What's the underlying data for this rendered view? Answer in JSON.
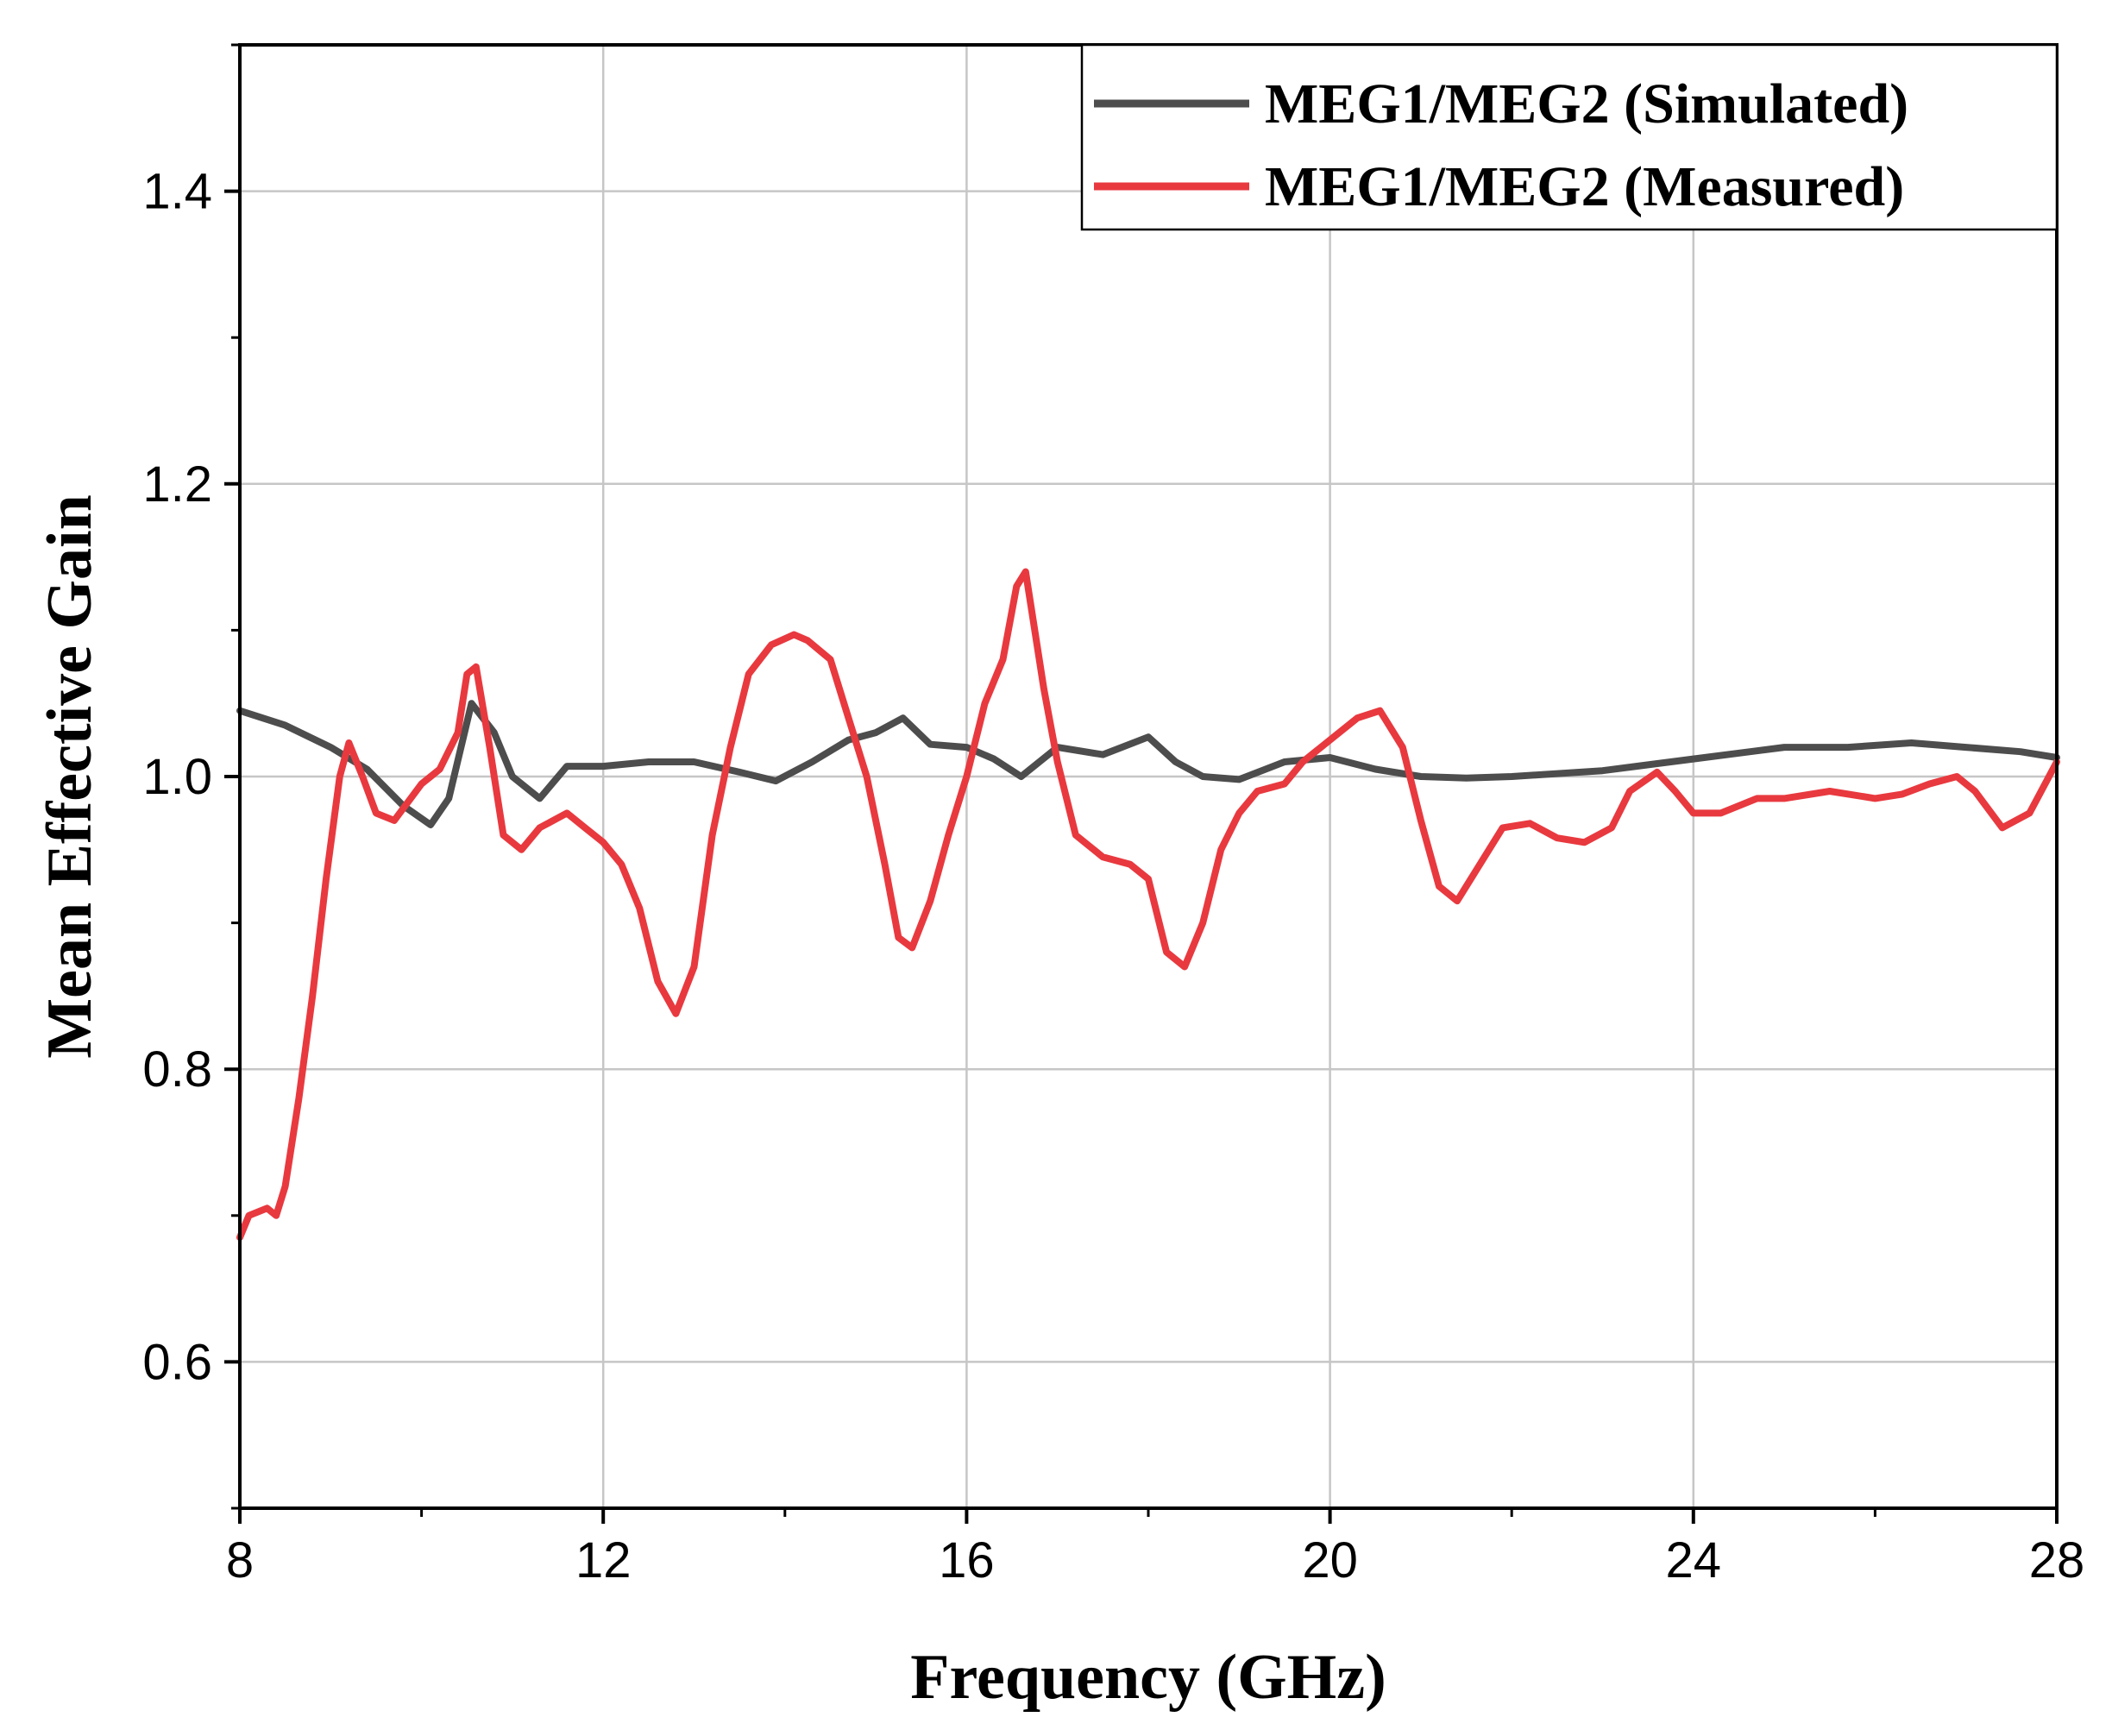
{
  "chart_data": {
    "type": "line",
    "title": "",
    "xlabel": "Frequency (GHz)",
    "ylabel": "Mean Effective Gain",
    "xlim": [
      8,
      28
    ],
    "ylim": [
      0.5,
      1.5
    ],
    "xticks": [
      8,
      12,
      16,
      20,
      24,
      28
    ],
    "yticks": [
      0.6,
      0.8,
      1.0,
      1.2,
      1.4
    ],
    "xtick_labels": [
      "8",
      "12",
      "16",
      "20",
      "24",
      "28"
    ],
    "ytick_labels": [
      "0.6",
      "0.8",
      "1.0",
      "1.2",
      "1.4"
    ],
    "grid": true,
    "legend_position": "top-right",
    "series": [
      {
        "name": "MEG1/MEG2 (Simulated)",
        "color": "#4d4d4d",
        "x": [
          8.0,
          8.5,
          9.0,
          9.4,
          9.8,
          10.1,
          10.3,
          10.55,
          10.8,
          11.0,
          11.3,
          11.6,
          12.0,
          12.5,
          13.0,
          13.5,
          13.9,
          14.3,
          14.7,
          15.0,
          15.3,
          15.6,
          16.0,
          16.3,
          16.6,
          17.0,
          17.5,
          18.0,
          18.3,
          18.6,
          19.0,
          19.5,
          20.0,
          20.5,
          21.0,
          21.5,
          22.0,
          23.0,
          24.0,
          25.0,
          25.7,
          26.4,
          27.0,
          27.6,
          28.0
        ],
        "values": [
          1.045,
          1.035,
          1.02,
          1.005,
          0.98,
          0.967,
          0.985,
          1.05,
          1.03,
          1.0,
          0.985,
          1.007,
          1.007,
          1.01,
          1.01,
          1.003,
          0.997,
          1.01,
          1.025,
          1.03,
          1.04,
          1.022,
          1.02,
          1.012,
          1.0,
          1.02,
          1.015,
          1.027,
          1.01,
          1.0,
          0.998,
          1.01,
          1.013,
          1.005,
          1.0,
          0.999,
          1.0,
          1.004,
          1.012,
          1.02,
          1.02,
          1.023,
          1.02,
          1.017,
          1.013
        ]
      },
      {
        "name": "MEG1/MEG2 (Measured)",
        "color": "#e8393f",
        "x": [
          8.0,
          8.1,
          8.3,
          8.4,
          8.5,
          8.65,
          8.8,
          8.95,
          9.1,
          9.2,
          9.35,
          9.5,
          9.7,
          10.0,
          10.2,
          10.4,
          10.5,
          10.6,
          10.75,
          10.9,
          11.1,
          11.3,
          11.6,
          11.8,
          12.0,
          12.2,
          12.4,
          12.6,
          12.8,
          13.0,
          13.2,
          13.4,
          13.6,
          13.85,
          14.1,
          14.25,
          14.5,
          14.7,
          14.9,
          15.1,
          15.25,
          15.4,
          15.6,
          15.8,
          16.0,
          16.2,
          16.4,
          16.55,
          16.65,
          16.85,
          17.0,
          17.2,
          17.5,
          17.8,
          18.0,
          18.2,
          18.4,
          18.6,
          18.8,
          19.0,
          19.2,
          19.5,
          19.7,
          20.0,
          20.3,
          20.55,
          20.8,
          21.0,
          21.2,
          21.4,
          21.6,
          21.9,
          22.2,
          22.5,
          22.8,
          23.1,
          23.3,
          23.6,
          23.8,
          24.0,
          24.3,
          24.7,
          25.0,
          25.5,
          26.0,
          26.3,
          26.6,
          26.9,
          27.1,
          27.4,
          27.7,
          28.0
        ],
        "values": [
          0.685,
          0.7,
          0.705,
          0.7,
          0.72,
          0.78,
          0.85,
          0.93,
          1.0,
          1.023,
          1.0,
          0.975,
          0.97,
          0.995,
          1.005,
          1.03,
          1.07,
          1.075,
          1.02,
          0.96,
          0.95,
          0.965,
          0.975,
          0.965,
          0.955,
          0.94,
          0.91,
          0.86,
          0.838,
          0.87,
          0.96,
          1.02,
          1.07,
          1.09,
          1.097,
          1.093,
          1.08,
          1.04,
          1.0,
          0.94,
          0.89,
          0.883,
          0.915,
          0.96,
          1.0,
          1.05,
          1.08,
          1.13,
          1.14,
          1.06,
          1.01,
          0.96,
          0.945,
          0.94,
          0.93,
          0.88,
          0.87,
          0.9,
          0.95,
          0.975,
          0.99,
          0.995,
          1.01,
          1.025,
          1.04,
          1.045,
          1.02,
          0.97,
          0.925,
          0.915,
          0.935,
          0.965,
          0.968,
          0.958,
          0.955,
          0.965,
          0.99,
          1.003,
          0.99,
          0.975,
          0.975,
          0.985,
          0.985,
          0.99,
          0.985,
          0.988,
          0.995,
          1.0,
          0.99,
          0.965,
          0.975,
          1.01
        ]
      }
    ]
  }
}
